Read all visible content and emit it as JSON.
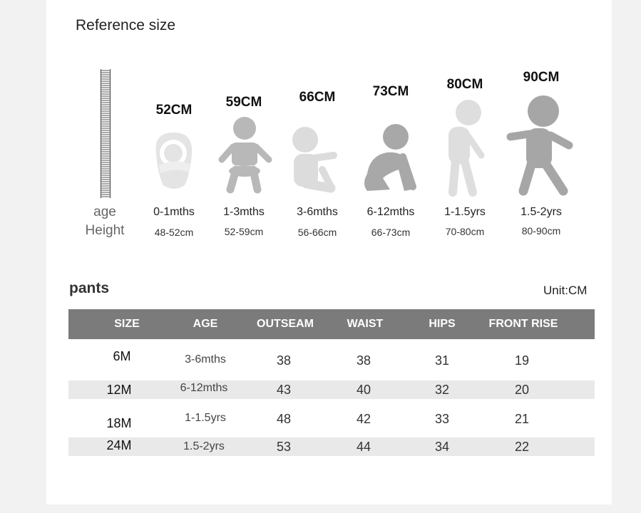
{
  "reference": {
    "title": "Reference size",
    "side_age": "age",
    "side_height": "Height",
    "stages": [
      {
        "cm": "52CM",
        "age": "0-1mths",
        "height": "48-52cm",
        "figure": "swaddled-baby-icon",
        "color": "#e2e2e2"
      },
      {
        "cm": "59CM",
        "age": "1-3mths",
        "height": "52-59cm",
        "figure": "infant-sitting-icon",
        "color": "#b8b8b8"
      },
      {
        "cm": "66CM",
        "age": "3-6mths",
        "height": "56-66cm",
        "figure": "baby-sitting-icon",
        "color": "#dcdcdc"
      },
      {
        "cm": "73CM",
        "age": "6-12mths",
        "height": "66-73cm",
        "figure": "baby-crawling-icon",
        "color": "#a8a8a8"
      },
      {
        "cm": "80CM",
        "age": "1-1.5yrs",
        "height": "70-80cm",
        "figure": "toddler-standing-icon",
        "color": "#dedede"
      },
      {
        "cm": "90CM",
        "age": "1.5-2yrs",
        "height": "80-90cm",
        "figure": "toddler-walking-icon",
        "color": "#a6a6a6"
      }
    ]
  },
  "pants": {
    "title": "pants",
    "unit": "Unit:CM",
    "header_color": "#7b7b7b",
    "columns": [
      "SIZE",
      "AGE",
      "OUTSEAM",
      "WAIST",
      "HIPS",
      "FRONT RISE"
    ],
    "rows": [
      {
        "size": "6M",
        "age": "3-6mths",
        "outseam": "38",
        "waist": "38",
        "hips": "31",
        "front_rise": "19"
      },
      {
        "size": "12M",
        "age": "6-12mths",
        "outseam": "43",
        "waist": "40",
        "hips": "32",
        "front_rise": "20"
      },
      {
        "size": "18M",
        "age": "1-1.5yrs",
        "outseam": "48",
        "waist": "42",
        "hips": "33",
        "front_rise": "21"
      },
      {
        "size": "24M",
        "age": "1.5-2yrs",
        "outseam": "53",
        "waist": "44",
        "hips": "34",
        "front_rise": "22"
      }
    ]
  }
}
